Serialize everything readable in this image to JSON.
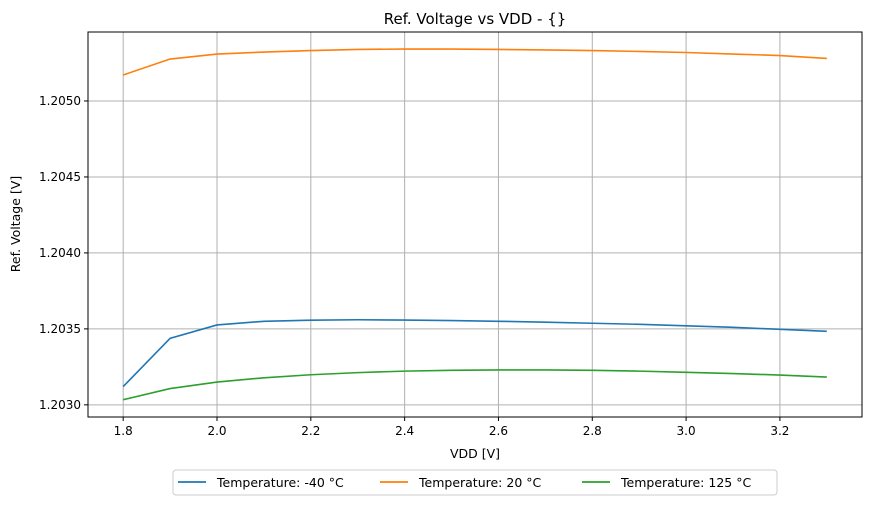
{
  "chart_data": {
    "type": "line",
    "title": "Ref. Voltage vs VDD - {}",
    "xlabel": "VDD [V]",
    "ylabel": "Ref. Voltage [V]",
    "xlim": [
      1.725,
      3.375
    ],
    "ylim": [
      1.20292,
      1.205454
    ],
    "grid": true,
    "legend_placement": "bottom-center-outside",
    "xticks": [
      "1.8",
      "2.0",
      "2.2",
      "2.4",
      "2.6",
      "2.8",
      "3.0",
      "3.2"
    ],
    "yticks": [
      "1.2030",
      "1.2035",
      "1.2040",
      "1.2045",
      "1.2050"
    ],
    "x": [
      1.8,
      1.9,
      2.0,
      2.1,
      2.2,
      2.3,
      2.4,
      2.5,
      2.6,
      2.7,
      2.8,
      2.9,
      3.0,
      3.1,
      3.2,
      3.3
    ],
    "series": [
      {
        "name": "Temperature: -40 °C",
        "color": "#1f77b4",
        "values": [
          1.20312,
          1.203438,
          1.203526,
          1.20355,
          1.203557,
          1.20356,
          1.203558,
          1.203555,
          1.20355,
          1.203544,
          1.203537,
          1.20353,
          1.20352,
          1.20351,
          1.203497,
          1.203484
        ]
      },
      {
        "name": "Temperature: 20 °C",
        "color": "#ff7f0e",
        "values": [
          1.205171,
          1.205276,
          1.205309,
          1.205322,
          1.205332,
          1.205339,
          1.205342,
          1.205342,
          1.205339,
          1.205336,
          1.205332,
          1.205326,
          1.205319,
          1.205309,
          1.205299,
          1.20528
        ]
      },
      {
        "name": "Temperature: 125 °C",
        "color": "#2ca02c",
        "values": [
          1.203034,
          1.203107,
          1.20315,
          1.203178,
          1.203198,
          1.203212,
          1.203222,
          1.203227,
          1.20323,
          1.20323,
          1.203227,
          1.203222,
          1.203214,
          1.203206,
          1.203196,
          1.203183
        ]
      }
    ]
  }
}
